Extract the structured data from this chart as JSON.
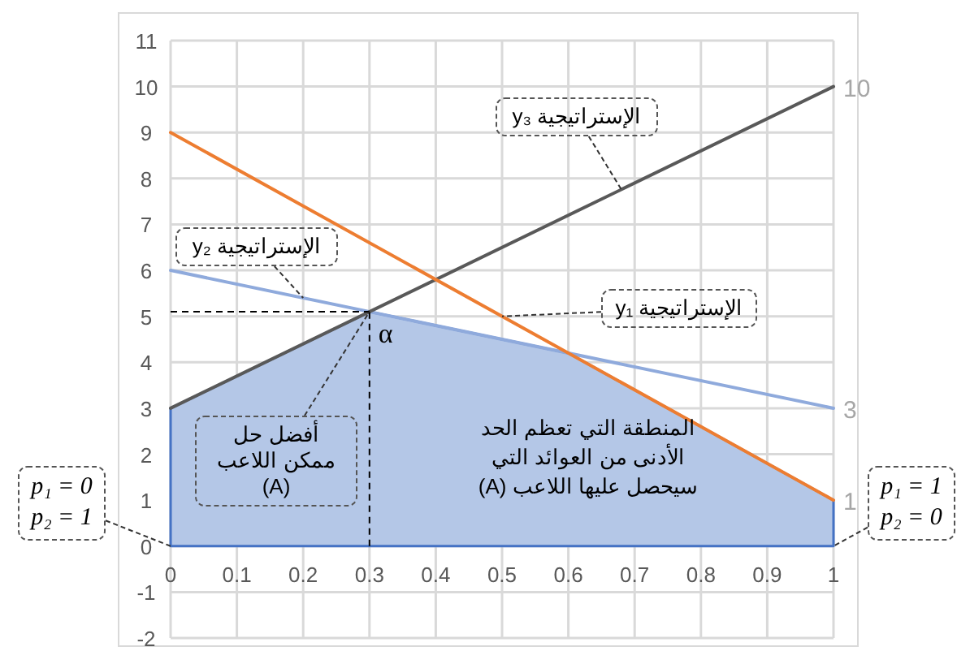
{
  "chart_data": {
    "type": "line",
    "x": [
      0,
      1
    ],
    "xlim": [
      0,
      1
    ],
    "ylim": [
      -2,
      11
    ],
    "xticks": [
      0,
      0.1,
      0.2,
      0.3,
      0.4,
      0.5,
      0.6,
      0.7,
      0.8,
      0.9,
      1
    ],
    "yticks": [
      -2,
      -1,
      0,
      1,
      2,
      3,
      4,
      5,
      6,
      7,
      8,
      9,
      10,
      11
    ],
    "grid": true,
    "marker": "none",
    "line_style": "solid",
    "series": [
      {
        "type": "area",
        "color": "#b4c7e7",
        "x": [
          0,
          0,
          0.3,
          0.6,
          1,
          1
        ],
        "values": [
          0,
          3,
          5.1,
          4.2,
          1,
          0
        ]
      },
      {
        "color": "#8faadc",
        "values": [
          6,
          3
        ],
        "value_labels": [
          null,
          "3"
        ]
      },
      {
        "color": "#595959",
        "values": [
          3,
          10
        ],
        "value_labels": [
          null,
          "10"
        ]
      },
      {
        "color": "#ed7d31",
        "values": [
          9,
          1
        ],
        "value_labels": [
          null,
          "1"
        ]
      }
    ],
    "ref_lines": [
      {
        "axis": "y",
        "value": 5.1,
        "color": "#000000",
        "line_style": "dashed"
      },
      {
        "axis": "x",
        "value": 0.3,
        "color": "#000000",
        "line_style": "dashed"
      }
    ],
    "annotations": [
      {
        "text": "الإستراتيجية y₃",
        "x": 0.68,
        "y": 7.76
      },
      {
        "text": "الإستراتيجية y₂",
        "x": 0.2,
        "y": 5.4
      },
      {
        "text": "الإستراتيجية y₁",
        "x": 0.5,
        "y": 5
      },
      {
        "text": "أفضل حل ممكن اللاعب (A)",
        "x": 0.3,
        "y": 5.1
      },
      {
        "text": "α",
        "x": 0.3,
        "y": 5.1
      },
      "المنطقة التي تعظم الحد الأدنى من العوائد التي سيحصل عليها اللاعب (A)",
      {
        "text": "p₁ = 0 p₂ = 1",
        "x": 0,
        "y": 0
      },
      {
        "text": "p₁ = 1 p₂ = 0",
        "x": 1,
        "y": 0
      }
    ]
  }
}
